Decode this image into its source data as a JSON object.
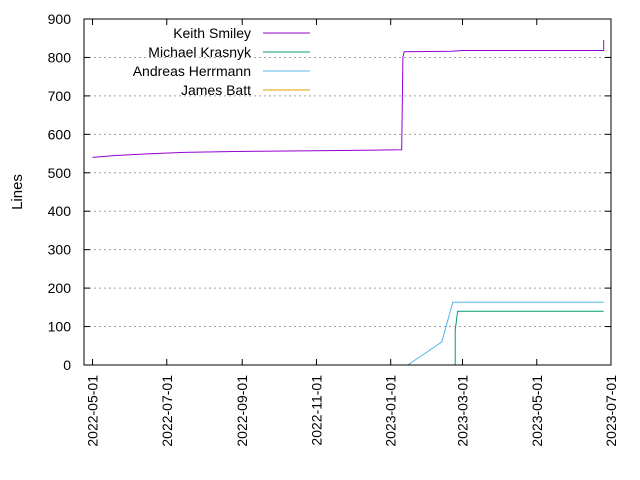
{
  "chart_data": {
    "type": "line",
    "title": "",
    "xlabel": "",
    "ylabel": "Lines",
    "grid": true,
    "legend_position": "top-left",
    "xlim": [
      "2022-04-24",
      "2023-07-01"
    ],
    "ylim": [
      0,
      900
    ],
    "y_ticks": [
      0,
      100,
      200,
      300,
      400,
      500,
      600,
      700,
      800,
      900
    ],
    "x_ticks": [
      "2022-05-01",
      "2022-07-01",
      "2022-09-01",
      "2022-11-01",
      "2023-01-01",
      "2023-03-01",
      "2023-05-01",
      "2023-07-01"
    ],
    "series": [
      {
        "name": "Keith Smiley",
        "color": "#9400d3",
        "points": [
          [
            "2022-05-01",
            540
          ],
          [
            "2022-05-20",
            545
          ],
          [
            "2022-06-15",
            549
          ],
          [
            "2022-07-15",
            553
          ],
          [
            "2022-08-20",
            555
          ],
          [
            "2022-09-15",
            556
          ],
          [
            "2022-10-20",
            557
          ],
          [
            "2022-11-20",
            558
          ],
          [
            "2022-12-20",
            559
          ],
          [
            "2023-01-10",
            560
          ],
          [
            "2023-01-11",
            800
          ],
          [
            "2023-01-12",
            815
          ],
          [
            "2023-02-20",
            816
          ],
          [
            "2023-03-01",
            818
          ],
          [
            "2023-06-25",
            818
          ],
          [
            "2023-06-25",
            845
          ]
        ]
      },
      {
        "name": "Michael Krasnyk",
        "color": "#009e73",
        "points": [
          [
            "2023-02-23",
            0
          ],
          [
            "2023-02-23",
            90
          ],
          [
            "2023-02-25",
            140
          ],
          [
            "2023-06-25",
            140
          ]
        ]
      },
      {
        "name": "Andreas Herrmann",
        "color": "#56b4e9",
        "points": [
          [
            "2023-01-15",
            0
          ],
          [
            "2023-02-12",
            60
          ],
          [
            "2023-02-21",
            163
          ],
          [
            "2023-06-25",
            163
          ]
        ]
      },
      {
        "name": "James Batt",
        "color": "#e69f00",
        "points": []
      }
    ]
  }
}
